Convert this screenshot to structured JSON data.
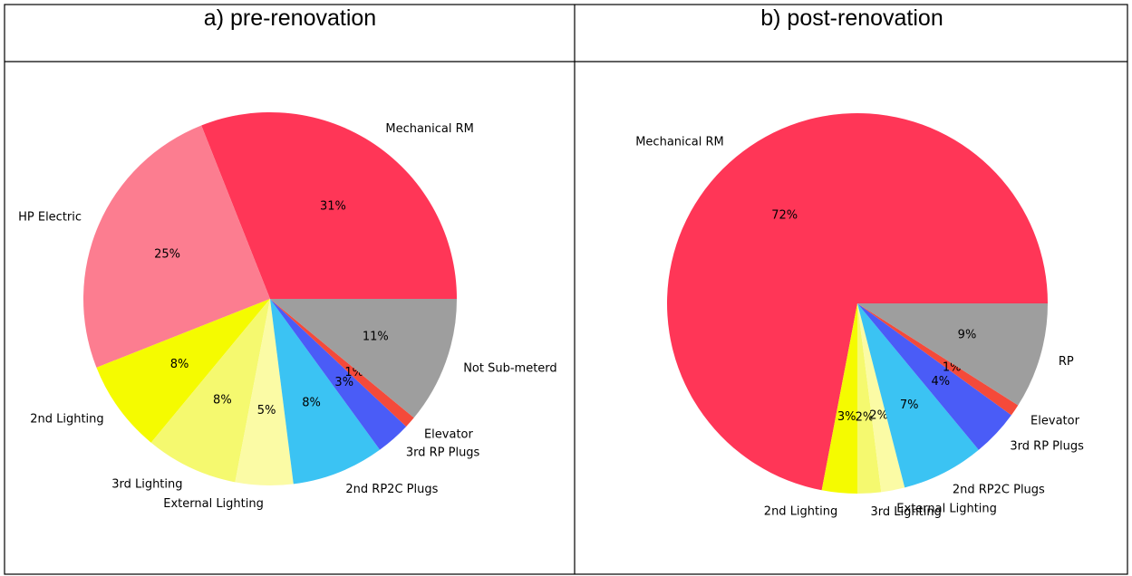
{
  "chart_data": [
    {
      "type": "pie",
      "title": "a) pre-renovation",
      "categories": [
        "Mechanical RM",
        "HP Electric",
        "2nd Lighting",
        "3rd Lighting",
        "External Lighting",
        "2nd RP2C Plugs",
        "3rd RP Plugs",
        "Elevator",
        "Not Sub-meterd"
      ],
      "values": [
        31,
        25,
        8,
        8,
        5,
        8,
        3,
        1,
        11
      ],
      "value_labels": [
        "31%",
        "25%",
        "8%",
        "8%",
        "5%",
        "8%",
        "3%",
        "1%",
        "11%"
      ],
      "colors": [
        "#ff3657",
        "#fc7d90",
        "#f5fb00",
        "#f5f96f",
        "#fbfba5",
        "#3bc3f3",
        "#4a5cf7",
        "#f44a3a",
        "#9e9e9e"
      ]
    },
    {
      "type": "pie",
      "title": "b) post-renovation",
      "categories": [
        "Mechanical RM",
        "2nd Lighting",
        "3rd Lighting",
        "External Lighting",
        "2nd RP2C Plugs",
        "3rd RP Plugs",
        "Elevator",
        "RP"
      ],
      "values": [
        72,
        3,
        2,
        2,
        7,
        4,
        1,
        9
      ],
      "value_labels": [
        "72%",
        "3%",
        "2%",
        "2%",
        "7%",
        "4%",
        "1%",
        "9%"
      ],
      "colors": [
        "#ff3657",
        "#f5fb00",
        "#f5f96f",
        "#fbfba5",
        "#3bc3f3",
        "#4a5cf7",
        "#f44a3a",
        "#9e9e9e"
      ]
    }
  ]
}
